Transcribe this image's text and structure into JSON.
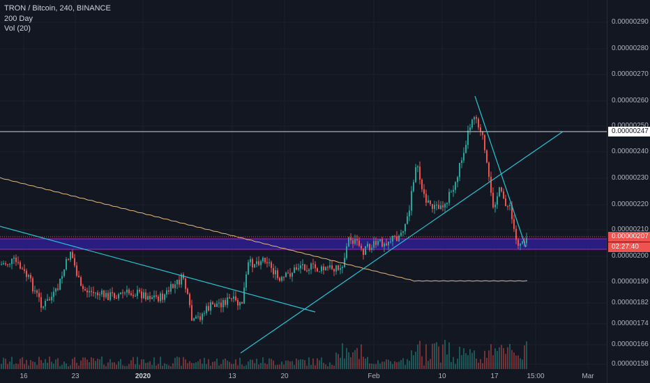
{
  "legend": {
    "symbol": "TRON / Bitcoin, 240, BINANCE",
    "indicator_ma": "200 Day",
    "indicator_vol": "Vol (20)"
  },
  "price_axis": {
    "ticks": [
      "0.00000290",
      "0.00000280",
      "0.00000270",
      "0.00000260",
      "0.00000250",
      "0.00000240",
      "0.00000230",
      "0.00000220",
      "0.00000210",
      "0.00000200",
      "0.00000190",
      "0.00000182",
      "0.00000174",
      "0.00000166",
      "0.00000158"
    ],
    "resistance_label": "0.00000247",
    "current_price": "0.00000207",
    "countdown": "02:27:40"
  },
  "time_axis": {
    "labels": [
      "16",
      "23",
      "2020",
      "13",
      "20",
      "Feb",
      "10",
      "17",
      "15:00",
      "Mar"
    ]
  },
  "colors": {
    "background": "#131722",
    "up": "#26a69a",
    "down": "#ef5350",
    "trendline": "#27c4d3",
    "zone": "#2e1f8f",
    "zone_border": "#b020d0",
    "ma": "#e8b87a",
    "resistance": "#d1d4dc"
  }
}
